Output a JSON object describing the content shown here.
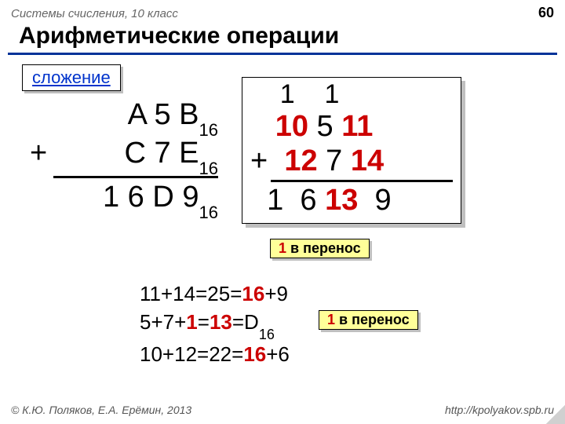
{
  "header": {
    "course": "Системы счисления, 10 класс",
    "page": "60"
  },
  "title": "Арифметические операции",
  "operation_label": "сложение",
  "hex": {
    "row1_a": "A 5 B",
    "row1_base": "16",
    "plus": "+",
    "row2_a": "C 7 E",
    "row2_base": "16",
    "sum": "1 6 D 9",
    "sum_base": "16"
  },
  "calc": {
    "carry_sp1": "    ",
    "carry1": "1",
    "carry_sp2": "    ",
    "carry2": "1",
    "r1_sp": "   ",
    "r1_a": "10",
    "r1_b": " 5 ",
    "r1_c": "11",
    "plus": "+",
    "r2_sp": "  ",
    "r2_a": "12",
    "r2_b": " 7 ",
    "r2_c": "14",
    "s_sp": "  ",
    "s_a": "1  6 ",
    "s_b": "13",
    "s_c": "  9"
  },
  "note_carry": {
    "one": "1",
    "text": " в перенос"
  },
  "explain": {
    "l1_a": "11+14=25=",
    "l1_b": "16",
    "l1_c": "+9",
    "l2_a": "5+7+",
    "l2_b": "1",
    "l2_c": "=",
    "l2_d": "13",
    "l2_e": "=D",
    "l2_base": "16",
    "l3_a": "10+12=22=",
    "l3_b": "16",
    "l3_c": "+6"
  },
  "footer": {
    "left": "© К.Ю. Поляков, Е.А. Ерёмин, 2013",
    "right": "http://kpolyakov.spb.ru"
  },
  "colors": {
    "accent_blue": "#003399",
    "link_blue": "#0033cc",
    "red": "#cc0000",
    "note_bg": "#ffff99",
    "shadow": "#bfbfbf"
  }
}
